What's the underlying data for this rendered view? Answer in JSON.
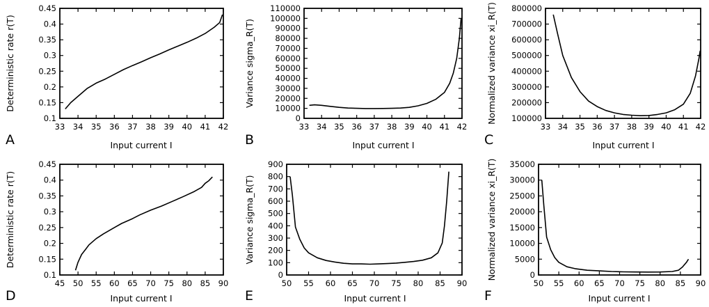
{
  "chart_data": [
    {
      "type": "line",
      "panel_label": "A",
      "xlabel": "Input current I",
      "ylabel": "Deterministic rate r(T)",
      "xlim": [
        33,
        42
      ],
      "ylim": [
        0.1,
        0.45
      ],
      "xticks": [
        "33",
        "34",
        "35",
        "36",
        "37",
        "38",
        "39",
        "40",
        "41",
        "42"
      ],
      "yticks": [
        "0.1",
        "0.15",
        "0.2",
        "0.25",
        "0.3",
        "0.35",
        "0.4",
        "0.45"
      ],
      "series": [
        {
          "x": [
            33.3,
            33.6,
            34.0,
            34.5,
            35.0,
            35.5,
            36.0,
            36.5,
            37.0,
            37.5,
            38.0,
            38.5,
            39.0,
            39.5,
            40.0,
            40.5,
            41.0,
            41.5,
            41.8,
            41.95
          ],
          "values": [
            0.13,
            0.15,
            0.17,
            0.195,
            0.212,
            0.225,
            0.24,
            0.255,
            0.268,
            0.28,
            0.293,
            0.305,
            0.318,
            0.33,
            0.342,
            0.355,
            0.37,
            0.39,
            0.405,
            0.43
          ]
        }
      ]
    },
    {
      "type": "line",
      "panel_label": "B",
      "xlabel": "Input current I",
      "ylabel": "Variance sigma_R(T)",
      "xlim": [
        33,
        42
      ],
      "ylim": [
        0,
        110000
      ],
      "xticks": [
        "33",
        "34",
        "35",
        "36",
        "37",
        "38",
        "39",
        "40",
        "41",
        "42"
      ],
      "yticks": [
        "0",
        "10000",
        "20000",
        "30000",
        "40000",
        "50000",
        "60000",
        "70000",
        "80000",
        "90000",
        "100000",
        "110000"
      ],
      "series": [
        {
          "x": [
            33.3,
            33.6,
            34.0,
            34.5,
            35.0,
            35.5,
            36.0,
            36.5,
            37.0,
            37.5,
            38.0,
            38.5,
            39.0,
            39.5,
            40.0,
            40.5,
            41.0,
            41.3,
            41.5,
            41.7,
            41.85,
            41.95
          ],
          "values": [
            13000,
            13500,
            13000,
            12000,
            11000,
            10300,
            10000,
            9800,
            9800,
            9900,
            10000,
            10300,
            11000,
            12500,
            15000,
            19000,
            26000,
            35000,
            45000,
            60000,
            80000,
            100000
          ]
        }
      ]
    },
    {
      "type": "line",
      "panel_label": "C",
      "xlabel": "Input current I",
      "ylabel": "Normalized variance xi_R(T)",
      "xlim": [
        33,
        42
      ],
      "ylim": [
        100000,
        800000
      ],
      "xticks": [
        "33",
        "34",
        "35",
        "36",
        "37",
        "38",
        "39",
        "40",
        "41",
        "42"
      ],
      "yticks": [
        "100000",
        "200000",
        "300000",
        "400000",
        "500000",
        "600000",
        "700000",
        "800000"
      ],
      "series": [
        {
          "x": [
            33.45,
            33.7,
            34.0,
            34.5,
            35.0,
            35.5,
            36.0,
            36.5,
            37.0,
            37.5,
            38.0,
            38.5,
            39.0,
            39.5,
            40.0,
            40.5,
            41.0,
            41.4,
            41.7,
            41.9,
            41.97
          ],
          "values": [
            760000,
            640000,
            500000,
            360000,
            270000,
            210000,
            175000,
            150000,
            135000,
            125000,
            120000,
            117000,
            118000,
            125000,
            135000,
            155000,
            190000,
            260000,
            370000,
            480000,
            530000
          ]
        }
      ]
    },
    {
      "type": "line",
      "panel_label": "D",
      "xlabel": "Input current I",
      "ylabel": "Deterministic rate r(T)",
      "xlim": [
        45,
        90
      ],
      "ylim": [
        0.1,
        0.45
      ],
      "xticks": [
        "45",
        "50",
        "55",
        "60",
        "65",
        "70",
        "75",
        "80",
        "85",
        "90"
      ],
      "yticks": [
        "0.1",
        "0.15",
        "0.2",
        "0.25",
        "0.3",
        "0.35",
        "0.4",
        "0.45"
      ],
      "series": [
        {
          "x": [
            49.3,
            50.0,
            51.0,
            52.0,
            53.0,
            55.0,
            57.0,
            60.0,
            62.0,
            65.0,
            67.0,
            70.0,
            73.0,
            76.0,
            79.0,
            82.0,
            84.0,
            85.0,
            86.0,
            87.0
          ],
          "values": [
            0.115,
            0.14,
            0.165,
            0.18,
            0.195,
            0.215,
            0.23,
            0.25,
            0.263,
            0.278,
            0.29,
            0.305,
            0.318,
            0.333,
            0.348,
            0.364,
            0.377,
            0.39,
            0.398,
            0.41
          ]
        }
      ]
    },
    {
      "type": "line",
      "panel_label": "E",
      "xlabel": "Input current I",
      "ylabel": "Variance sigma_R(T)",
      "xlim": [
        50,
        90
      ],
      "ylim": [
        0,
        900
      ],
      "xticks": [
        "50",
        "55",
        "60",
        "65",
        "70",
        "75",
        "80",
        "85",
        "90"
      ],
      "yticks": [
        "0",
        "100",
        "200",
        "300",
        "400",
        "500",
        "600",
        "700",
        "800",
        "900"
      ],
      "series": [
        {
          "x": [
            50.8,
            51.3,
            52.0,
            53.0,
            54.0,
            55.0,
            57.0,
            59.0,
            61.0,
            63.0,
            65.0,
            67.0,
            69.0,
            71.0,
            73.0,
            75.0,
            77.0,
            79.0,
            81.0,
            83.0,
            84.5,
            85.5,
            86.0,
            86.5,
            87.0
          ],
          "values": [
            800,
            650,
            390,
            290,
            220,
            180,
            140,
            118,
            105,
            95,
            90,
            90,
            88,
            90,
            93,
            97,
            103,
            110,
            120,
            140,
            180,
            260,
            400,
            600,
            840
          ]
        }
      ]
    },
    {
      "type": "line",
      "panel_label": "F",
      "xlabel": "Input current I",
      "ylabel": "Normalized variance xi_R(T)",
      "xlim": [
        50,
        90
      ],
      "ylim": [
        0,
        35000
      ],
      "xticks": [
        "50",
        "55",
        "60",
        "65",
        "70",
        "75",
        "80",
        "85",
        "90"
      ],
      "yticks": [
        "0",
        "5000",
        "10000",
        "15000",
        "20000",
        "25000",
        "30000",
        "35000"
      ],
      "series": [
        {
          "x": [
            50.8,
            51.3,
            52.0,
            53.0,
            54.0,
            55.0,
            57.0,
            59.0,
            62.0,
            65.0,
            68.0,
            71.0,
            74.0,
            77.0,
            80.0,
            83.0,
            84.5,
            85.5,
            86.5,
            87.0
          ],
          "values": [
            30000,
            22000,
            12000,
            8000,
            5500,
            4000,
            2600,
            2000,
            1500,
            1300,
            1100,
            1000,
            950,
            930,
            950,
            1100,
            1500,
            2500,
            4000,
            5000
          ]
        }
      ]
    }
  ]
}
